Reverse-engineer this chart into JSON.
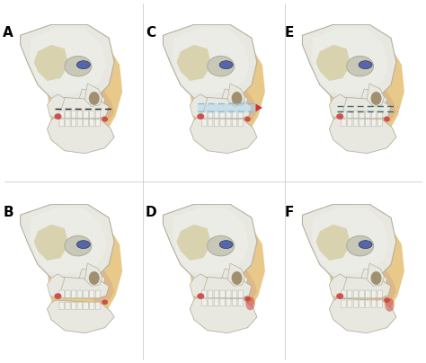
{
  "figure_width": 4.74,
  "figure_height": 4.04,
  "dpi": 100,
  "background_color": "#ffffff",
  "panels": [
    "A",
    "B",
    "C",
    "D",
    "E",
    "F"
  ],
  "label_fontsize": 11,
  "label_color": "#000000",
  "label_weight": "bold",
  "skin_color": "#deb887",
  "skin_light": "#e8c98a",
  "bone_color": "#e8e8e0",
  "bone_shadow": "#b0b0a0",
  "tooth_color": "#f0f0e8",
  "eye_color": "#5566aa",
  "gum_color_red": "#cc4444",
  "dashed_line_color_A": "#222222",
  "dashed_line_color_C": "#88bbdd",
  "dashed_line_color_E": "#446666",
  "highlight_blue": "#aad4ee",
  "highlight_red": "#cc4444"
}
